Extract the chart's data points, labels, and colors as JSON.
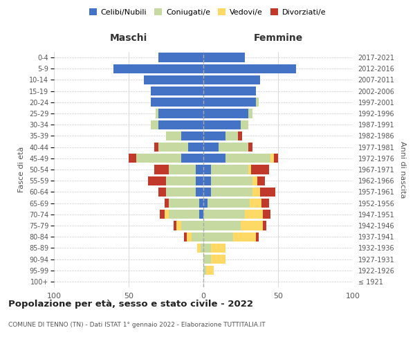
{
  "age_groups": [
    "100+",
    "95-99",
    "90-94",
    "85-89",
    "80-84",
    "75-79",
    "70-74",
    "65-69",
    "60-64",
    "55-59",
    "50-54",
    "45-49",
    "40-44",
    "35-39",
    "30-34",
    "25-29",
    "20-24",
    "15-19",
    "10-14",
    "5-9",
    "0-4"
  ],
  "birth_years": [
    "≤ 1921",
    "1922-1926",
    "1927-1931",
    "1932-1936",
    "1937-1941",
    "1942-1946",
    "1947-1951",
    "1952-1956",
    "1957-1961",
    "1962-1966",
    "1967-1971",
    "1972-1976",
    "1977-1981",
    "1982-1986",
    "1987-1991",
    "1992-1996",
    "1997-2001",
    "2002-2006",
    "2007-2011",
    "2012-2016",
    "2017-2021"
  ],
  "males": {
    "celibi": [
      0,
      0,
      0,
      0,
      0,
      0,
      3,
      3,
      5,
      5,
      5,
      15,
      10,
      15,
      30,
      30,
      35,
      35,
      40,
      60,
      30
    ],
    "coniugati": [
      0,
      0,
      0,
      2,
      8,
      15,
      20,
      20,
      20,
      20,
      18,
      30,
      20,
      10,
      5,
      2,
      0,
      0,
      0,
      0,
      0
    ],
    "vedovi": [
      0,
      0,
      0,
      2,
      3,
      3,
      3,
      0,
      0,
      0,
      0,
      0,
      0,
      0,
      0,
      0,
      0,
      0,
      0,
      0,
      0
    ],
    "divorziati": [
      0,
      0,
      0,
      0,
      2,
      2,
      3,
      3,
      5,
      12,
      10,
      5,
      3,
      0,
      0,
      0,
      0,
      0,
      0,
      0,
      0
    ]
  },
  "females": {
    "nubili": [
      0,
      0,
      0,
      0,
      0,
      0,
      0,
      3,
      5,
      5,
      5,
      15,
      10,
      15,
      25,
      30,
      35,
      35,
      38,
      62,
      28
    ],
    "coniugate": [
      0,
      2,
      5,
      5,
      20,
      25,
      28,
      28,
      28,
      28,
      25,
      30,
      20,
      8,
      5,
      3,
      2,
      0,
      0,
      0,
      0
    ],
    "vedove": [
      0,
      5,
      10,
      10,
      15,
      15,
      12,
      8,
      5,
      3,
      2,
      2,
      0,
      0,
      0,
      0,
      0,
      0,
      0,
      0,
      0
    ],
    "divorziate": [
      0,
      0,
      0,
      0,
      2,
      2,
      5,
      5,
      10,
      5,
      12,
      3,
      3,
      3,
      0,
      0,
      0,
      0,
      0,
      0,
      0
    ]
  },
  "colors": {
    "celibi": "#4472c4",
    "coniugati": "#c5d9a0",
    "vedovi": "#ffd966",
    "divorziati": "#c0392b"
  },
  "xlim": 100,
  "title": "Popolazione per età, sesso e stato civile - 2022",
  "subtitle": "COMUNE DI TENNO (TN) - Dati ISTAT 1° gennaio 2022 - Elaborazione TUTTITALIA.IT",
  "ylabel_left": "Fasce di età",
  "ylabel_right": "Anni di nascita",
  "xlabel_left": "Maschi",
  "xlabel_right": "Femmine",
  "legend_labels": [
    "Celibi/Nubili",
    "Coniugati/e",
    "Vedovi/e",
    "Divorziati/e"
  ],
  "background_color": "#ffffff",
  "grid_color": "#cccccc"
}
